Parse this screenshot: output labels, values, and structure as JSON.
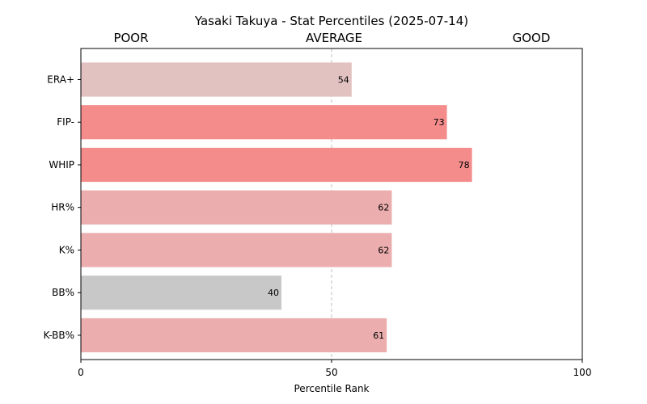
{
  "chart_data": {
    "type": "bar",
    "orientation": "horizontal",
    "title": "Yasaki Takuya - Stat Percentiles (2025-07-14)",
    "xlabel": "Percentile Rank",
    "ylabel": "",
    "xlim": [
      0,
      100
    ],
    "xticks": [
      "0",
      "50",
      "100"
    ],
    "band_labels": [
      "POOR",
      "AVERAGE",
      "GOOD"
    ],
    "reference_line": 50,
    "categories": [
      "ERA+",
      "FIP-",
      "WHIP",
      "HR%",
      "K%",
      "BB%",
      "K-BB%"
    ],
    "values": [
      54,
      73,
      78,
      62,
      62,
      40,
      61
    ],
    "bar_colors": [
      "#e2c1c1",
      "#f48c8c",
      "#f48c8c",
      "#ebadad",
      "#ebadad",
      "#c8c8c8",
      "#ebadad"
    ],
    "grid": false,
    "legend": "none"
  }
}
